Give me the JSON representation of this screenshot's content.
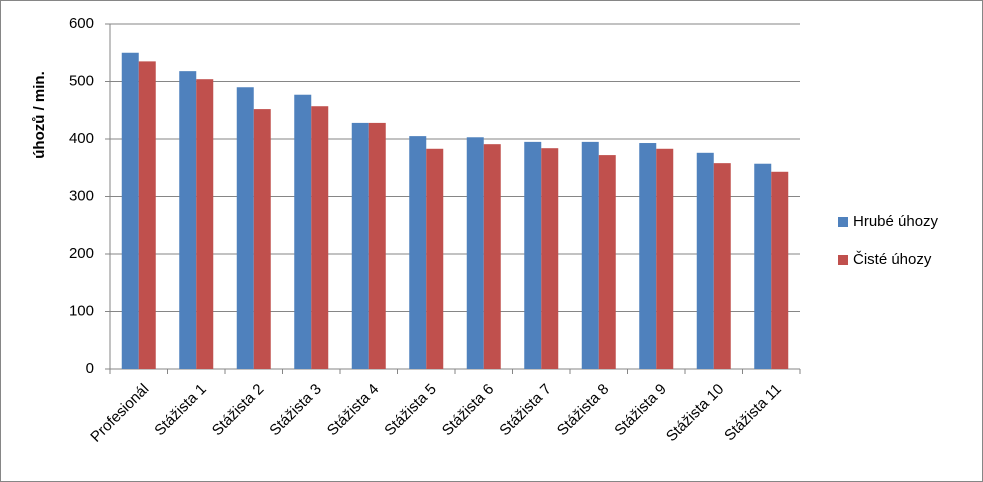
{
  "chart_data": {
    "type": "bar",
    "ylabel": "úhozů / min.",
    "categories": [
      "Profesionál",
      "Stážista 1",
      "Stážista 2",
      "Stážista 3",
      "Stážista 4",
      "Stážista 5",
      "Stážista 6",
      "Stážista 7",
      "Stážista 8",
      "Stážista 9",
      "Stážista 10",
      "Stážista 11"
    ],
    "series": [
      {
        "name": "Hrubé úhozy",
        "color": "#4f81bd",
        "values": [
          550,
          518,
          490,
          477,
          428,
          405,
          403,
          395,
          395,
          393,
          376,
          357
        ]
      },
      {
        "name": "Čisté úhozy",
        "color": "#c0504d",
        "values": [
          535,
          504,
          452,
          457,
          428,
          383,
          391,
          384,
          372,
          383,
          358,
          343
        ]
      }
    ],
    "ylim": [
      0,
      600
    ],
    "yticks": [
      0,
      100,
      200,
      300,
      400,
      500,
      600
    ],
    "grid": true,
    "legend": "right"
  }
}
